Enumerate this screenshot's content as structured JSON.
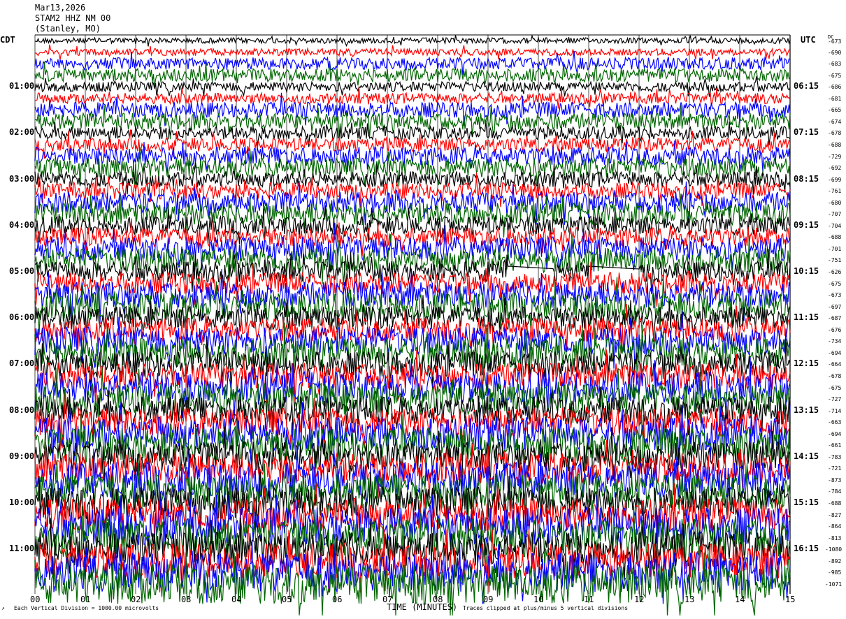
{
  "header": {
    "date": "Mar13,2026",
    "station": "STAM2 HHZ NM 00",
    "location": "(Stanley, MO)"
  },
  "left_axis_label": "CDT",
  "right_axis_label": "UTC",
  "dc_label": "DC",
  "footer": {
    "scale_note": "Each Vertical Division = 1000.00 microvolts",
    "xlabel": "TIME (MINUTES)",
    "clip_note": "Traces clipped at plus/minus 5 vertical divisions",
    "corner_mark": "↗"
  },
  "chart_data": {
    "type": "line",
    "subtype": "helicorder",
    "xlabel": "TIME (MINUTES)",
    "xlim": [
      0,
      15
    ],
    "x_ticks": [
      "00",
      "01",
      "02",
      "03",
      "04",
      "05",
      "06",
      "07",
      "08",
      "09",
      "10",
      "11",
      "12",
      "13",
      "14",
      "15"
    ],
    "grid": "vertical lines every minute",
    "trace_colors": [
      "#000000",
      "#ff0000",
      "#0000ff",
      "#006600"
    ],
    "rows_per_hour": 4,
    "cdt_hour_labels": [
      "01:00",
      "02:00",
      "03:00",
      "04:00",
      "05:00",
      "06:00",
      "07:00",
      "08:00",
      "09:00",
      "10:00",
      "11:00"
    ],
    "utc_hour_labels": [
      "06:15",
      "07:15",
      "08:15",
      "09:15",
      "10:15",
      "11:15",
      "12:15",
      "13:15",
      "14:15",
      "15:15",
      "16:15"
    ],
    "dc_offsets": [
      "-673",
      "-690",
      "-683",
      "-675",
      "-686",
      "-681",
      "-665",
      "-674",
      "-678",
      "-688",
      "-729",
      "-692",
      "-699",
      "-761",
      "-680",
      "-707",
      "-704",
      "-688",
      "-701",
      "-751",
      "-626",
      "-675",
      "-673",
      "-697",
      "-687",
      "-676",
      "-734",
      "-694",
      "-664",
      "-678",
      "-675",
      "-727",
      "-714",
      "-663",
      "-694",
      "-661",
      "-783",
      "-721",
      "-873",
      "-784",
      "-688",
      "-827",
      "-864",
      "-813",
      "-1080",
      "-892",
      "-985",
      "-1071"
    ],
    "data_gaps": [
      {
        "row_label": "05:00",
        "from_minute": 9.4,
        "to_minute": 10.3
      },
      {
        "row_label": "05:00",
        "from_minute": 11.0,
        "to_minute": 12.0
      }
    ],
    "amplitude_trend": "increasing from quiet early rows to strongly noisy late rows"
  }
}
